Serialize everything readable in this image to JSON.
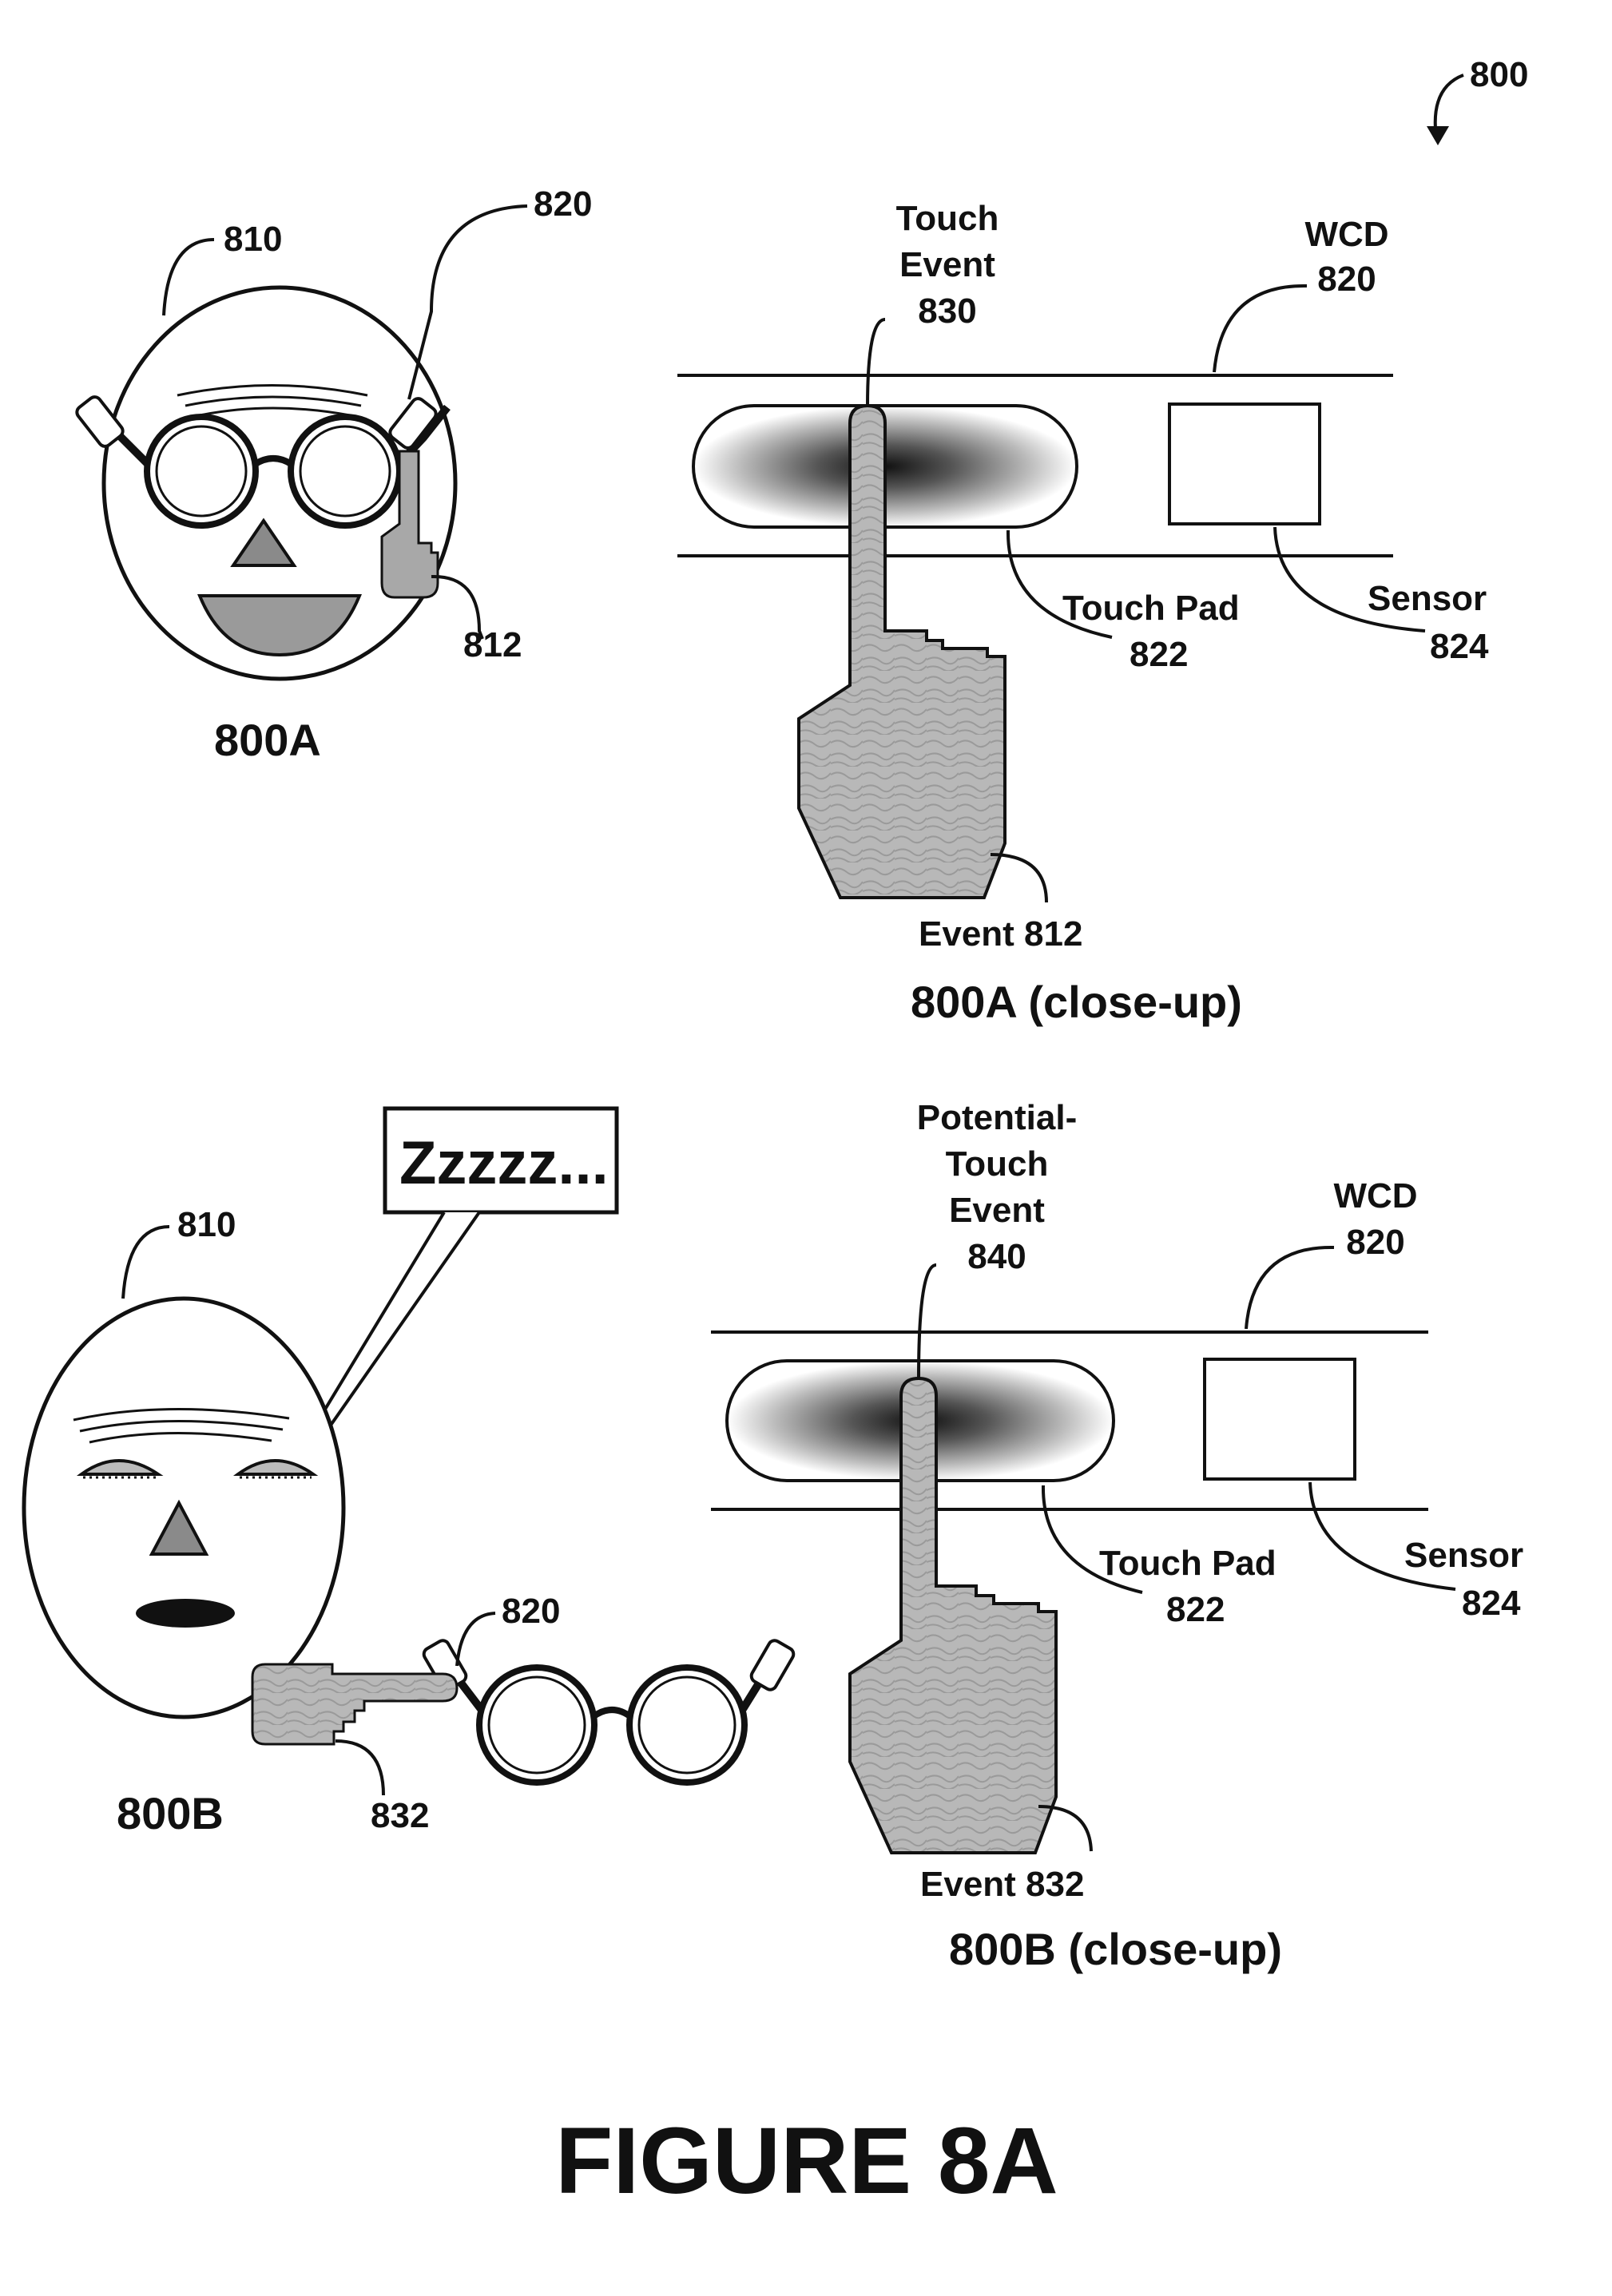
{
  "figure_number": "800",
  "panel_a": {
    "person_ref": "810",
    "device_ref": "820",
    "finger_ref": "812",
    "title": "800A"
  },
  "panel_a_closeup": {
    "touch_event_line1": "Touch",
    "touch_event_line2": "Event",
    "touch_event_ref": "830",
    "wcd_label": "WCD",
    "wcd_ref": "820",
    "touch_pad_label": "Touch Pad",
    "touch_pad_ref": "822",
    "sensor_label": "Sensor",
    "sensor_ref": "824",
    "event_label": "Event 812",
    "title": "800A (close-up)"
  },
  "panel_b": {
    "person_ref": "810",
    "speech": "Zzzzz...",
    "device_ref": "820",
    "finger_ref": "832",
    "title": "800B"
  },
  "panel_b_closeup": {
    "event_line1": "Potential-",
    "event_line2": "Touch",
    "event_line3": "Event",
    "event_ref": "840",
    "wcd_label": "WCD",
    "wcd_ref": "820",
    "touch_pad_label": "Touch Pad",
    "touch_pad_ref": "822",
    "sensor_label": "Sensor",
    "sensor_ref": "824",
    "event_label": "Event 832",
    "title": "800B (close-up)"
  },
  "caption": "FIGURE 8A"
}
